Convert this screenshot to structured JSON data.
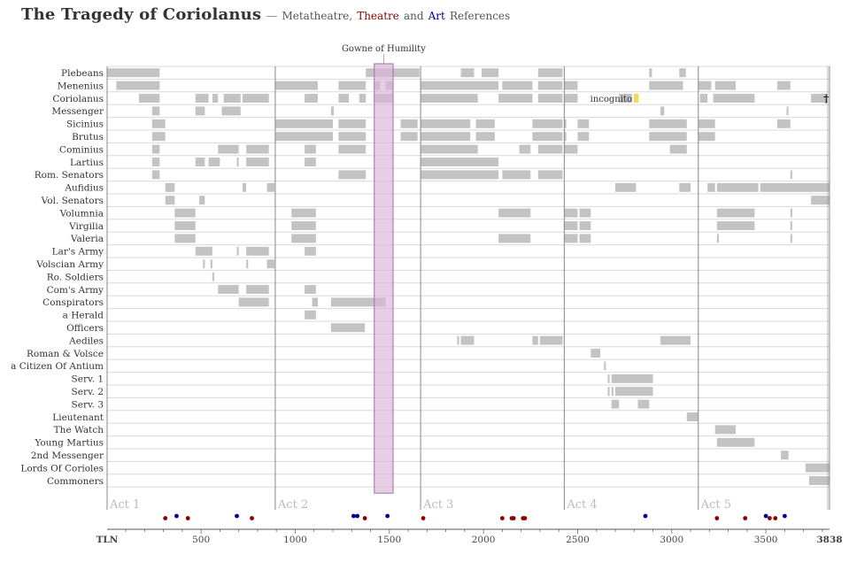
{
  "title": {
    "main": "The Tragedy of Coriolanus",
    "separator": "—",
    "sub_meta": "Metatheatre,",
    "sub_theatre": "Theatre",
    "sub_and": "and",
    "sub_art": "Art",
    "sub_refs": "References"
  },
  "colors": {
    "bar": "#c3c3c3",
    "highlight_bar": "#a98aa9",
    "highlight_fill": "#d9b3d9",
    "highlight_stroke": "#a070a0",
    "incognito": "#f0d760",
    "theatre_dot": "#8b0000",
    "art_dot": "#00008b",
    "act_line": "#888888",
    "gridline": "#d8d8d8"
  },
  "chart_data": {
    "type": "timeline",
    "xlabel": "TLN",
    "xlim": [
      1,
      3838
    ],
    "x_ticks": [
      "500",
      "1000",
      "1500",
      "2000",
      "2500",
      "3000",
      "3500"
    ],
    "x_tick_values": [
      500,
      1000,
      1500,
      2000,
      2500,
      3000,
      3500
    ],
    "x_start_label": "TLN",
    "x_end_label": "3838",
    "acts": [
      {
        "label": "Act 1",
        "start": 1
      },
      {
        "label": "Act 2",
        "start": 894
      },
      {
        "label": "Act 3",
        "start": 1666
      },
      {
        "label": "Act 4",
        "start": 2429
      },
      {
        "label": "Act 5",
        "start": 3141
      }
    ],
    "highlight": {
      "label": "Gowne of Humility",
      "start": 1420,
      "end": 1520
    },
    "annotations": [
      {
        "label": "incognito",
        "start": 2620,
        "end": 2720
      },
      {
        "label": "†",
        "at": 3830
      }
    ],
    "characters": [
      {
        "name": "Plebeans",
        "spans": [
          [
            1,
            280
          ],
          [
            1375,
            1660
          ],
          [
            1880,
            1950
          ],
          [
            1990,
            2080
          ],
          [
            2290,
            2420
          ],
          [
            2880,
            2895
          ],
          [
            3040,
            3075
          ]
        ]
      },
      {
        "name": "Menenius",
        "spans": [
          [
            50,
            280
          ],
          [
            894,
            1120
          ],
          [
            1230,
            1375
          ],
          [
            1420,
            1450
          ],
          [
            1480,
            1520
          ],
          [
            1666,
            2080
          ],
          [
            2100,
            2260
          ],
          [
            2290,
            2420
          ],
          [
            2429,
            2500
          ],
          [
            2880,
            3060
          ],
          [
            3141,
            3210
          ],
          [
            3230,
            3340
          ],
          [
            3560,
            3630
          ]
        ]
      },
      {
        "name": "Coriolanus",
        "spans": [
          [
            170,
            280
          ],
          [
            470,
            540
          ],
          [
            560,
            590
          ],
          [
            620,
            710
          ],
          [
            720,
            860
          ],
          [
            1050,
            1120
          ],
          [
            1230,
            1285
          ],
          [
            1340,
            1375
          ],
          [
            1420,
            1520
          ],
          [
            1666,
            1970
          ],
          [
            2080,
            2260
          ],
          [
            2290,
            2420
          ],
          [
            2429,
            2500
          ],
          [
            2720,
            2790
          ],
          [
            3150,
            3190
          ],
          [
            3220,
            3440
          ],
          [
            3740,
            3830
          ]
        ]
      },
      {
        "name": "Messenger",
        "spans": [
          [
            240,
            280
          ],
          [
            470,
            520
          ],
          [
            610,
            710
          ],
          [
            1190,
            1205
          ],
          [
            2940,
            2960
          ],
          [
            3610,
            3620
          ]
        ]
      },
      {
        "name": "Sicinius",
        "spans": [
          [
            240,
            310
          ],
          [
            894,
            1200
          ],
          [
            1230,
            1375
          ],
          [
            1560,
            1650
          ],
          [
            1666,
            1930
          ],
          [
            1960,
            2060
          ],
          [
            2260,
            2420
          ],
          [
            2429,
            2440
          ],
          [
            2500,
            2560
          ],
          [
            2880,
            3080
          ],
          [
            3141,
            3230
          ],
          [
            3560,
            3630
          ]
        ]
      },
      {
        "name": "Brutus",
        "spans": [
          [
            240,
            310
          ],
          [
            894,
            1200
          ],
          [
            1230,
            1375
          ],
          [
            1560,
            1650
          ],
          [
            1666,
            1930
          ],
          [
            1960,
            2060
          ],
          [
            2260,
            2420
          ],
          [
            2429,
            2440
          ],
          [
            2500,
            2560
          ],
          [
            2880,
            3080
          ],
          [
            3141,
            3230
          ]
        ]
      },
      {
        "name": "Cominius",
        "spans": [
          [
            240,
            280
          ],
          [
            590,
            700
          ],
          [
            740,
            860
          ],
          [
            1050,
            1110
          ],
          [
            1230,
            1375
          ],
          [
            1666,
            1970
          ],
          [
            2190,
            2250
          ],
          [
            2290,
            2420
          ],
          [
            2429,
            2500
          ],
          [
            2990,
            3080
          ]
        ]
      },
      {
        "name": "Lartius",
        "spans": [
          [
            240,
            280
          ],
          [
            470,
            520
          ],
          [
            540,
            600
          ],
          [
            690,
            700
          ],
          [
            740,
            860
          ],
          [
            1050,
            1110
          ],
          [
            1666,
            2080
          ]
        ]
      },
      {
        "name": "Rom. Senators",
        "spans": [
          [
            240,
            280
          ],
          [
            1230,
            1375
          ],
          [
            1666,
            2080
          ],
          [
            2100,
            2250
          ],
          [
            2290,
            2420
          ],
          [
            3630,
            3640
          ]
        ]
      },
      {
        "name": "Aufidius",
        "spans": [
          [
            310,
            360
          ],
          [
            720,
            740
          ],
          [
            850,
            890
          ],
          [
            2700,
            2810
          ],
          [
            3040,
            3100
          ],
          [
            3190,
            3230
          ],
          [
            3240,
            3460
          ],
          [
            3470,
            3838
          ]
        ]
      },
      {
        "name": "Vol. Senators",
        "spans": [
          [
            310,
            360
          ],
          [
            490,
            520
          ],
          [
            3740,
            3838
          ]
        ]
      },
      {
        "name": "Volumnia",
        "spans": [
          [
            360,
            470
          ],
          [
            980,
            1110
          ],
          [
            2080,
            2250
          ],
          [
            2429,
            2500
          ],
          [
            2510,
            2570
          ],
          [
            3240,
            3440
          ],
          [
            3630,
            3640
          ]
        ]
      },
      {
        "name": "Virgilia",
        "spans": [
          [
            360,
            470
          ],
          [
            980,
            1110
          ],
          [
            2429,
            2500
          ],
          [
            2510,
            2570
          ],
          [
            3240,
            3440
          ],
          [
            3630,
            3640
          ]
        ]
      },
      {
        "name": "Valeria",
        "spans": [
          [
            360,
            470
          ],
          [
            980,
            1110
          ],
          [
            2080,
            2250
          ],
          [
            2429,
            2500
          ],
          [
            2510,
            2570
          ],
          [
            3240,
            3250
          ],
          [
            3630,
            3640
          ]
        ]
      },
      {
        "name": "Lar's Army",
        "spans": [
          [
            470,
            560
          ],
          [
            690,
            700
          ],
          [
            740,
            860
          ],
          [
            1050,
            1110
          ]
        ]
      },
      {
        "name": "Volscian Army",
        "spans": [
          [
            510,
            520
          ],
          [
            550,
            560
          ],
          [
            740,
            750
          ],
          [
            850,
            890
          ]
        ]
      },
      {
        "name": "Ro. Soldiers",
        "spans": [
          [
            560,
            570
          ]
        ]
      },
      {
        "name": "Com's Army",
        "spans": [
          [
            590,
            700
          ],
          [
            740,
            860
          ],
          [
            1050,
            1110
          ]
        ]
      },
      {
        "name": "Conspirators",
        "spans": [
          [
            700,
            860
          ],
          [
            1090,
            1120
          ],
          [
            1190,
            1420
          ],
          [
            1420,
            1480
          ]
        ]
      },
      {
        "name": "a Herald",
        "spans": [
          [
            1050,
            1110
          ]
        ]
      },
      {
        "name": "Officers",
        "spans": [
          [
            1190,
            1370
          ]
        ]
      },
      {
        "name": "Aediles",
        "spans": [
          [
            1860,
            1870
          ],
          [
            1880,
            1950
          ],
          [
            2260,
            2290
          ],
          [
            2300,
            2420
          ],
          [
            2940,
            3100
          ]
        ]
      },
      {
        "name": "Roman & Volsce",
        "spans": [
          [
            2570,
            2620
          ]
        ]
      },
      {
        "name": "a Citizen Of Antium",
        "spans": [
          [
            2640,
            2650
          ]
        ]
      },
      {
        "name": "Serv. 1",
        "spans": [
          [
            2660,
            2670
          ],
          [
            2680,
            2900
          ]
        ]
      },
      {
        "name": "Serv. 2",
        "spans": [
          [
            2660,
            2670
          ],
          [
            2680,
            2690
          ],
          [
            2700,
            2900
          ]
        ]
      },
      {
        "name": "Serv. 3",
        "spans": [
          [
            2680,
            2720
          ],
          [
            2820,
            2880
          ]
        ]
      },
      {
        "name": "Lieutenant",
        "spans": [
          [
            3080,
            3141
          ]
        ]
      },
      {
        "name": "The Watch",
        "spans": [
          [
            3230,
            3340
          ]
        ]
      },
      {
        "name": "Young Martius",
        "spans": [
          [
            3240,
            3440
          ]
        ]
      },
      {
        "name": "2nd Messenger",
        "spans": [
          [
            3580,
            3620
          ]
        ]
      },
      {
        "name": "Lords Of Corioles",
        "spans": [
          [
            3710,
            3838
          ]
        ]
      },
      {
        "name": "Commoners",
        "spans": [
          [
            3730,
            3838
          ]
        ]
      }
    ],
    "references": [
      {
        "type": "theatre",
        "tln": 310
      },
      {
        "type": "art",
        "tln": 370
      },
      {
        "type": "theatre",
        "tln": 430
      },
      {
        "type": "art",
        "tln": 690
      },
      {
        "type": "theatre",
        "tln": 770
      },
      {
        "type": "art",
        "tln": 1310
      },
      {
        "type": "art",
        "tln": 1330
      },
      {
        "type": "theatre",
        "tln": 1370
      },
      {
        "type": "art",
        "tln": 1490
      },
      {
        "type": "theatre",
        "tln": 1680
      },
      {
        "type": "theatre",
        "tln": 2100
      },
      {
        "type": "theatre",
        "tln": 2150
      },
      {
        "type": "theatre",
        "tln": 2160
      },
      {
        "type": "theatre",
        "tln": 2210
      },
      {
        "type": "theatre",
        "tln": 2220
      },
      {
        "type": "art",
        "tln": 2860
      },
      {
        "type": "theatre",
        "tln": 3240
      },
      {
        "type": "theatre",
        "tln": 3390
      },
      {
        "type": "art",
        "tln": 3500
      },
      {
        "type": "theatre",
        "tln": 3520
      },
      {
        "type": "theatre",
        "tln": 3550
      },
      {
        "type": "art",
        "tln": 3600
      }
    ]
  }
}
